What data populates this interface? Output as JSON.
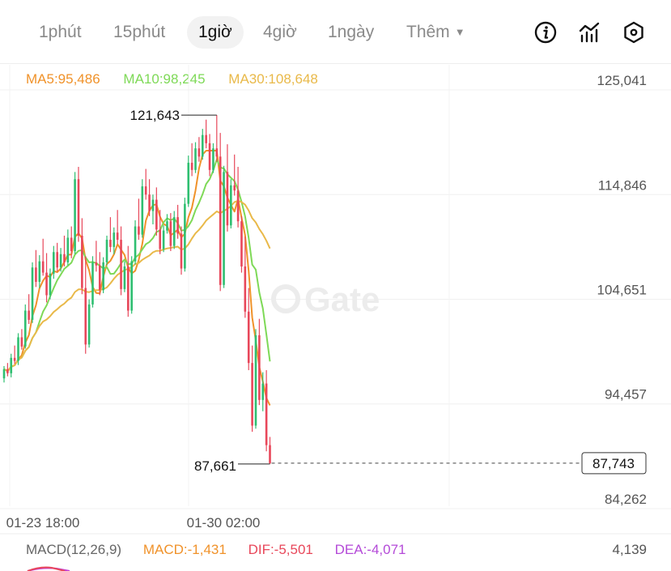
{
  "timeframes": {
    "items": [
      "1phút",
      "15phút",
      "1giờ",
      "4giờ",
      "1ngày"
    ],
    "active": "1giờ",
    "more_label": "Thêm"
  },
  "toolbar": {
    "icons": [
      "info-icon",
      "indicator-chart-icon",
      "settings-hexagon-icon"
    ]
  },
  "ma_legend": {
    "ma5": "MA5:95,486",
    "ma10": "MA10:98,245",
    "ma30": "MA30:108,648"
  },
  "colors": {
    "up": "#2fbf71",
    "down": "#e8475a",
    "ma5": "#f0922a",
    "ma10": "#7ed957",
    "ma30": "#e9b949",
    "dif": "#e8475a",
    "dea": "#b44ad8",
    "macd": "#f0922a"
  },
  "price_axis": {
    "labels": [
      "125,041",
      "114,846",
      "104,651",
      "94,457",
      "84,262"
    ]
  },
  "time_axis": {
    "labels": [
      "01-23 18:00",
      "01-30 02:00"
    ]
  },
  "current_price": "87,743",
  "watermark": "Gate",
  "macd_legend": {
    "title": "MACD(12,26,9)",
    "macd": "MACD:-1,431",
    "dif": "DIF:-5,501",
    "dea": "DEA:-4,071"
  },
  "macd_axis_top": "4,139",
  "chart_data": {
    "type": "candlestick",
    "y_ticks": [
      125041,
      114846,
      104651,
      94457,
      84262
    ],
    "ylim": [
      82000,
      127000
    ],
    "x_ticks": [
      "01-23 18:00",
      "01-30 02:00"
    ],
    "high_annotation": {
      "label": "121,643",
      "value": 121643
    },
    "low_annotation": {
      "label": "87,661",
      "value": 87661
    },
    "last_price": 87743,
    "moving_averages": [
      {
        "name": "MA5",
        "last": 95486
      },
      {
        "name": "MA10",
        "last": 98245
      },
      {
        "name": "MA30",
        "last": 108648
      }
    ],
    "candles": [
      [
        96000,
        97200,
        95600,
        96900
      ],
      [
        96900,
        97500,
        96200,
        96500
      ],
      [
        96500,
        98400,
        96100,
        98000
      ],
      [
        98000,
        99200,
        97400,
        97700
      ],
      [
        97700,
        100400,
        97300,
        100000
      ],
      [
        100000,
        100800,
        98800,
        99100
      ],
      [
        99100,
        103200,
        98900,
        102600
      ],
      [
        102600,
        104200,
        101300,
        101700
      ],
      [
        101700,
        107300,
        101400,
        106800
      ],
      [
        106800,
        108500,
        104900,
        105400
      ],
      [
        105400,
        108000,
        104800,
        107400
      ],
      [
        107400,
        109600,
        106000,
        106300
      ],
      [
        106300,
        108200,
        103400,
        104100
      ],
      [
        104100,
        106700,
        103700,
        106200
      ],
      [
        106200,
        108900,
        105700,
        108300
      ],
      [
        108300,
        109200,
        106400,
        106800
      ],
      [
        106800,
        108700,
        106400,
        108100
      ],
      [
        108100,
        109900,
        106900,
        107300
      ],
      [
        107300,
        110500,
        107000,
        109700
      ],
      [
        109700,
        110800,
        107700,
        108400
      ],
      [
        108400,
        116100,
        108100,
        115400
      ],
      [
        115400,
        116600,
        109300,
        109900
      ],
      [
        109900,
        111600,
        104200,
        104800
      ],
      [
        104800,
        107900,
        98400,
        99300
      ],
      [
        99300,
        103700,
        99000,
        103200
      ],
      [
        103200,
        107900,
        102900,
        107300
      ],
      [
        107300,
        109400,
        106400,
        107000
      ],
      [
        107000,
        108300,
        104100,
        104600
      ],
      [
        104600,
        107800,
        104300,
        107300
      ],
      [
        107300,
        109900,
        107000,
        109500
      ],
      [
        109500,
        111700,
        108300,
        108800
      ],
      [
        108800,
        110700,
        108100,
        110200
      ],
      [
        110200,
        112400,
        109100,
        109500
      ],
      [
        109500,
        110800,
        104100,
        104700
      ],
      [
        104700,
        107400,
        104400,
        106900
      ],
      [
        106900,
        108900,
        102000,
        102600
      ],
      [
        102600,
        107900,
        102300,
        107400
      ],
      [
        107400,
        111400,
        107100,
        110800
      ],
      [
        110800,
        113500,
        109500,
        110000
      ],
      [
        110000,
        115400,
        109700,
        114700
      ],
      [
        114700,
        116400,
        113400,
        113900
      ],
      [
        113900,
        115400,
        111800,
        112300
      ],
      [
        112300,
        113900,
        111000,
        113400
      ],
      [
        113400,
        114600,
        109900,
        110500
      ],
      [
        110500,
        112400,
        108100,
        108600
      ],
      [
        108600,
        110900,
        108300,
        110400
      ],
      [
        110400,
        112000,
        110100,
        111300
      ],
      [
        111300,
        112100,
        108400,
        108900
      ],
      [
        108900,
        112300,
        108600,
        111700
      ],
      [
        111700,
        112900,
        109600,
        110100
      ],
      [
        110100,
        110800,
        106100,
        106700
      ],
      [
        106700,
        113600,
        106400,
        113000
      ],
      [
        113000,
        117700,
        112700,
        117000
      ],
      [
        117000,
        118900,
        115700,
        116300
      ],
      [
        116300,
        119000,
        116000,
        118400
      ],
      [
        118400,
        119500,
        117100,
        117600
      ],
      [
        117600,
        120300,
        117300,
        119700
      ],
      [
        119700,
        121200,
        118400,
        118900
      ],
      [
        118900,
        119800,
        115700,
        116300
      ],
      [
        116300,
        118900,
        116000,
        118400
      ],
      [
        118400,
        121643,
        117100,
        117600
      ],
      [
        117600,
        119900,
        104500,
        105100
      ],
      [
        105100,
        116700,
        104800,
        116100
      ],
      [
        116100,
        118800,
        110300,
        110900
      ],
      [
        110900,
        115400,
        110600,
        114800
      ],
      [
        114800,
        117800,
        113800,
        114300
      ],
      [
        114300,
        116600,
        110700,
        111300
      ],
      [
        111300,
        111800,
        106300,
        106900
      ],
      [
        106900,
        109800,
        101900,
        102500
      ],
      [
        102500,
        104800,
        96800,
        97500
      ],
      [
        97500,
        99200,
        90800,
        91400
      ],
      [
        91400,
        100800,
        91100,
        100200
      ],
      [
        100200,
        101800,
        93400,
        93900
      ],
      [
        93900,
        96600,
        92800,
        95500
      ],
      [
        95500,
        96800,
        88900,
        89500
      ],
      [
        89500,
        90300,
        87661,
        87743
      ]
    ],
    "macd": {
      "params": "12,26,9",
      "macd": -1431,
      "dif": -5501,
      "dea": -4071,
      "axis_top": 4139
    }
  }
}
